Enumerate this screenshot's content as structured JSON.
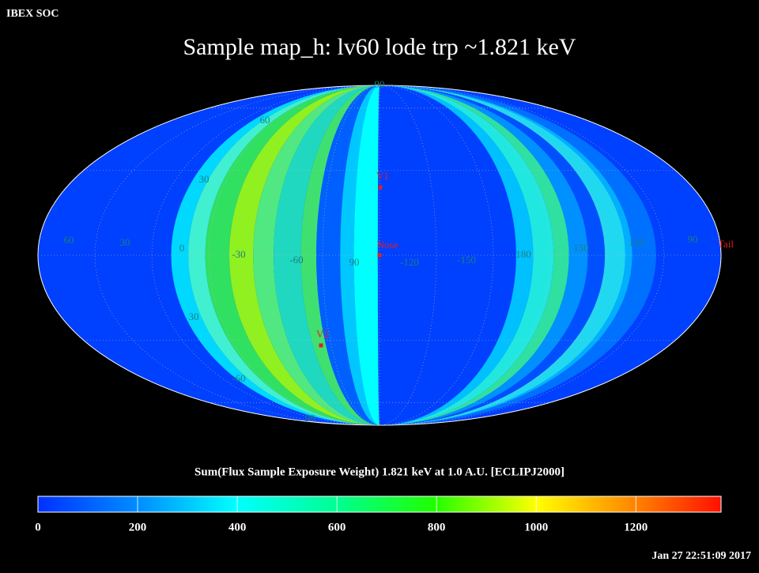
{
  "header": {
    "source": "IBEX SOC",
    "title": "Sample map_h: lv60 lode trp ~1.821 keV",
    "timestamp": "Jan 27 22:51:09 2017"
  },
  "map": {
    "grid_labels": [
      "60",
      "30",
      "0",
      "-30",
      "-60",
      "90",
      "-120",
      "-150",
      "180",
      "150",
      "120",
      "90",
      "90",
      "60",
      "30",
      "30",
      "-60",
      "90"
    ],
    "markers": [
      "V1",
      "Nose",
      "V2",
      "Tail"
    ]
  },
  "colorbar": {
    "label": "Sum(Flux Sample Exposure Weight)  1.821 keV at 1.0 A.U. [ECLIPJ2000]",
    "lim": [
      0,
      1371
    ],
    "ticks": [
      0,
      200,
      400,
      600,
      800,
      1000,
      1200
    ]
  }
}
